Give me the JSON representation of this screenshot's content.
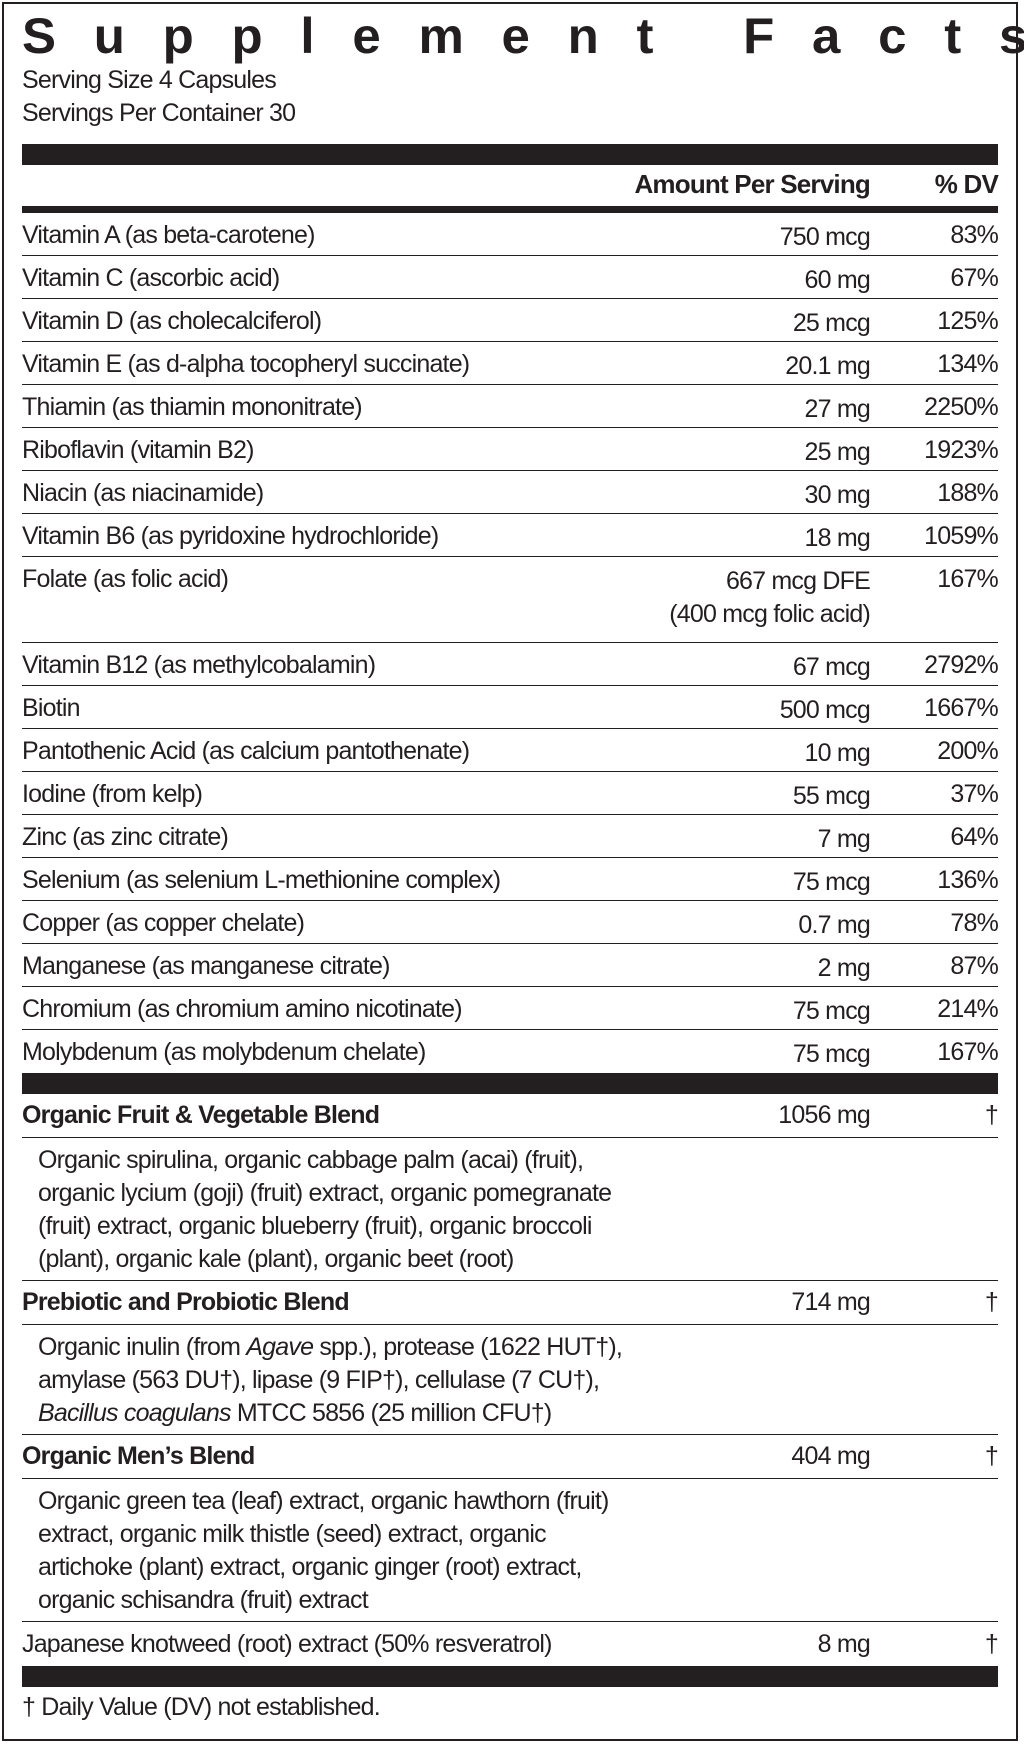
{
  "title": "Supplement Facts",
  "serving_size": "Serving Size 4 Capsules",
  "servings_per_container": "Servings Per Container 30",
  "header": {
    "amount": "Amount Per Serving",
    "dv": "% DV"
  },
  "nutrients": [
    {
      "name": "Vitamin A (as beta-carotene)",
      "amount": "750 mcg",
      "dv": "83%"
    },
    {
      "name": "Vitamin C (ascorbic acid)",
      "amount": "60 mg",
      "dv": "67%"
    },
    {
      "name": "Vitamin D (as cholecalciferol)",
      "amount": "25 mcg",
      "dv": "125%"
    },
    {
      "name": "Vitamin E (as d-alpha tocopheryl succinate)",
      "amount": "20.1 mg",
      "dv": "134%"
    },
    {
      "name": "Thiamin (as thiamin mononitrate)",
      "amount": "27 mg",
      "dv": "2250%"
    },
    {
      "name": "Riboflavin (vitamin B2)",
      "amount": "25 mg",
      "dv": "1923%"
    },
    {
      "name": "Niacin (as niacinamide)",
      "amount": "30 mg",
      "dv": "188%"
    },
    {
      "name": "Vitamin B6 (as pyridoxine hydrochloride)",
      "amount": "18 mg",
      "dv": "1059%"
    },
    {
      "name": "Folate (as folic acid)",
      "amount": "667 mcg DFE",
      "amount_note": "(400 mcg folic acid)",
      "dv": "167%"
    },
    {
      "name": "Vitamin B12 (as methylcobalamin)",
      "amount": "67 mcg",
      "dv": "2792%"
    },
    {
      "name": "Biotin",
      "amount": "500 mcg",
      "dv": "1667%"
    },
    {
      "name": "Pantothenic Acid (as calcium pantothenate)",
      "amount": "10 mg",
      "dv": "200%"
    },
    {
      "name": "Iodine (from kelp)",
      "amount": "55 mcg",
      "dv": "37%"
    },
    {
      "name": "Zinc (as zinc citrate)",
      "amount": "7 mg",
      "dv": "64%"
    },
    {
      "name": "Selenium (as selenium L-methionine complex)",
      "amount": "75 mcg",
      "dv": "136%"
    },
    {
      "name": "Copper (as copper chelate)",
      "amount": "0.7 mg",
      "dv": "78%"
    },
    {
      "name": "Manganese (as manganese citrate)",
      "amount": "2 mg",
      "dv": "87%"
    },
    {
      "name": "Chromium (as chromium amino nicotinate)",
      "amount": "75 mcg",
      "dv": "214%"
    },
    {
      "name": "Molybdenum (as molybdenum chelate)",
      "amount": "75 mcg",
      "dv": "167%"
    }
  ],
  "blends": [
    {
      "name": "Organic Fruit & Vegetable Blend",
      "amount": "1056 mg",
      "dv": "†",
      "lines": [
        "Organic spirulina, organic cabbage palm (acai) (fruit),",
        "organic lycium (goji) (fruit) extract, organic pomegranate",
        "(fruit) extract, organic blueberry (fruit), organic broccoli",
        "(plant), organic kale (plant), organic beet (root)"
      ]
    },
    {
      "name": "Prebiotic and Probiotic Blend",
      "amount": "714 mg",
      "dv": "†",
      "l1a": "Organic inulin (from ",
      "l1i": "Agave",
      "l1b": " spp.), protease (1622 HUT†),",
      "l2": "amylase (563 DU†), lipase (9 FIP†), cellulase (7 CU†),",
      "l3i": "Bacillus coagulans",
      "l3b": " MTCC 5856 (25 million CFU†)"
    },
    {
      "name": "Organic Men’s Blend",
      "amount": "404 mg",
      "dv": "†",
      "lines": [
        "Organic green tea (leaf) extract, organic hawthorn (fruit)",
        "extract, organic milk thistle (seed) extract, organic",
        "artichoke (plant) extract, organic ginger (root) extract,",
        "organic schisandra (fruit) extract"
      ]
    }
  ],
  "extra": {
    "name": "Japanese knotweed (root) extract (50% resveratrol)",
    "amount": "8 mg",
    "dv": "†"
  },
  "footnote": "† Daily Value (DV) not established."
}
